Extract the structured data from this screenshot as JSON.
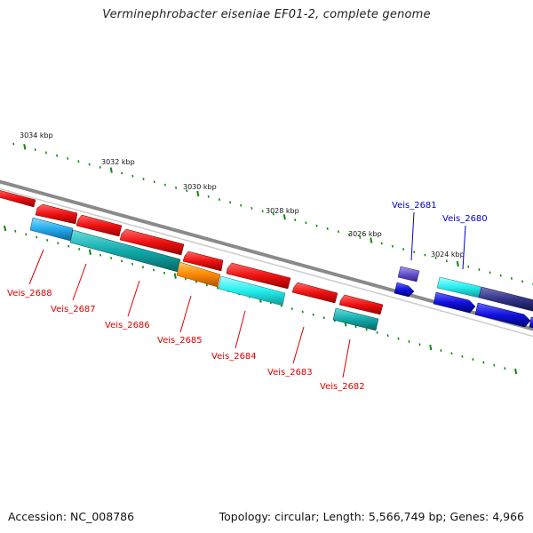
{
  "title": "Verminephrobacter eiseniae EF01-2, complete genome",
  "footer": {
    "accession": "Accession: NC_008786",
    "summary": "Topology: circular; Length: 5,566,749 bp; Genes: 4,966"
  },
  "scale_labels": [
    "3034 kbp",
    "3032 kbp",
    "3030 kbp",
    "3028 kbp",
    "3026 kbp",
    "3024 kbp"
  ],
  "gene_labels_top": [
    "Veis_2681",
    "Veis_2680"
  ],
  "gene_labels_bottom": [
    "Veis_2688",
    "Veis_2687",
    "Veis_2686",
    "Veis_2685",
    "Veis_2684",
    "Veis_2683",
    "Veis_2682"
  ],
  "colors": {
    "red": "#ee1111",
    "cyan": "#22dddd",
    "teal": "#11aaaa",
    "sky": "#22aaee",
    "orange": "#ff8800",
    "blue": "#1111dd",
    "violet": "#6655cc",
    "navy": "#333388",
    "tick_green": "#118811",
    "backbone": "#777777",
    "label_red": "#dd0000",
    "label_blue": "#0000cc"
  }
}
